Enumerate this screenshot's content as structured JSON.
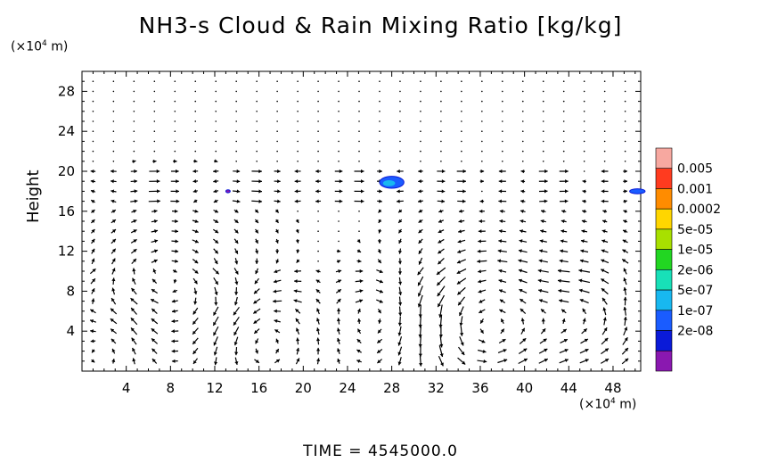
{
  "title": "NH3-s Cloud & Rain Mixing Ratio [kg/kg]",
  "y_unit": "(×10⁴ m)",
  "x_unit": "(×10⁴ m)",
  "ylabel": "Height",
  "time_label": "TIME  =  4545000.0",
  "chart_data": {
    "type": "heatmap",
    "title": "NH3-s Cloud & Rain Mixing Ratio [kg/kg]",
    "ylabel": "Height",
    "xlim": [
      0,
      50.5
    ],
    "ylim": [
      0,
      30
    ],
    "x_ticks": [
      4,
      8,
      12,
      16,
      20,
      24,
      28,
      32,
      36,
      40,
      44,
      48
    ],
    "y_ticks": [
      4,
      8,
      12,
      16,
      20,
      24,
      28
    ],
    "colorbar": {
      "labels": [
        "0.005",
        "0.001",
        "0.0002",
        "5e-05",
        "1e-05",
        "2e-06",
        "5e-07",
        "1e-07",
        "2e-08"
      ],
      "colors": [
        "#f7a8a0",
        "#ff3b1f",
        "#ff8c00",
        "#ffd600",
        "#a8e000",
        "#22d622",
        "#18e0b8",
        "#18b8f0",
        "#1a5cff",
        "#0a1ad8",
        "#8a18b0"
      ]
    },
    "cloud_patches": [
      {
        "x": 28.0,
        "y": 18.9,
        "w": 2.2,
        "h": 1.2,
        "color": "#1a5cff"
      },
      {
        "x": 50.2,
        "y": 18.0,
        "w": 1.4,
        "h": 0.5,
        "color": "#1a5cff"
      },
      {
        "x": 13.2,
        "y": 18.0,
        "w": 0.4,
        "h": 0.3,
        "color": "#8a18b0"
      }
    ],
    "wind_field": "grid of direction arrows; eddies centred near (36,4), (46,5), (28,5), (8,7), (16,3)"
  }
}
